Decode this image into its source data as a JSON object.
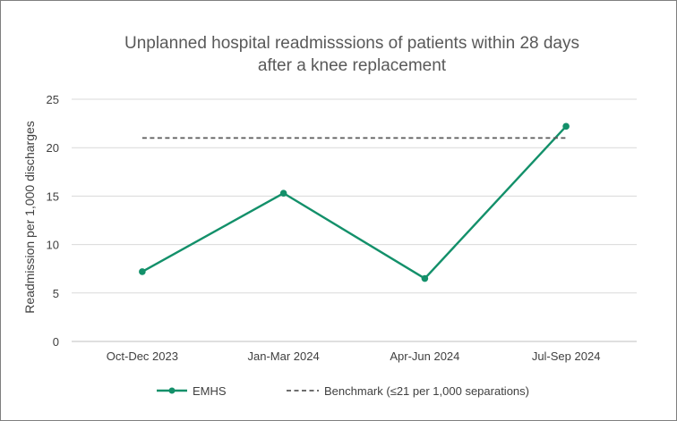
{
  "chart_data": {
    "type": "line",
    "title_lines": [
      "Unplanned hospital readmisssions of patients within 28 days",
      "after a knee replacement"
    ],
    "ylabel": "Readmission per 1,000 discharges",
    "xlabel": "",
    "categories": [
      "Oct-Dec 2023",
      "Jan-Mar 2024",
      "Apr-Jun 2024",
      "Jul-Sep 2024"
    ],
    "ylim": [
      0,
      25
    ],
    "yticks": [
      0,
      5,
      10,
      15,
      20,
      25
    ],
    "grid": true,
    "legend_position": "bottom",
    "series": [
      {
        "name": "EMHS",
        "values": [
          7.2,
          15.3,
          6.5,
          22.2
        ],
        "color": "#13906a",
        "style": "solid",
        "markers": true
      },
      {
        "name": "Benchmark (≤21 per 1,000 separations)",
        "values": [
          21,
          21,
          21,
          21
        ],
        "color": "#595959",
        "style": "dashed",
        "markers": false
      }
    ]
  }
}
